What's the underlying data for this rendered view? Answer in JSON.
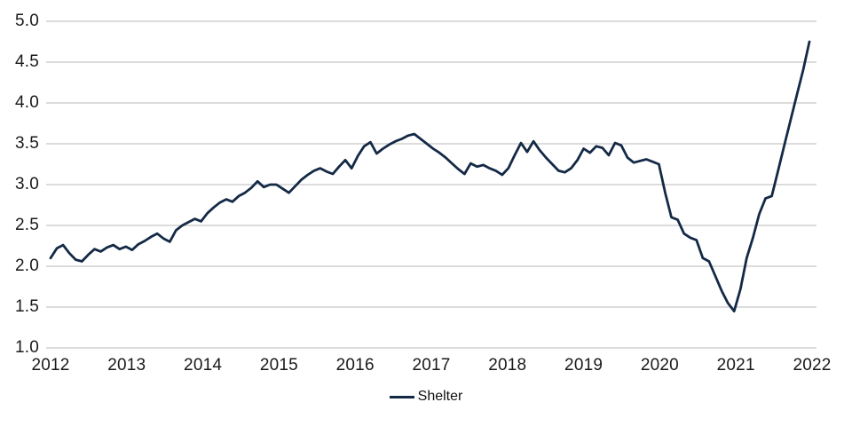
{
  "chart_data": {
    "type": "line",
    "title": "",
    "xlabel": "",
    "ylabel": "",
    "frequency": "monthly",
    "x_start": "2012-01",
    "x_end": "2022-02",
    "x_tick_labels": [
      "2012",
      "2013",
      "2014",
      "2015",
      "2016",
      "2017",
      "2018",
      "2019",
      "2020",
      "2021",
      "2022"
    ],
    "y_tick_labels": [
      "5.0",
      "4.5",
      "4.0",
      "3.5",
      "3.0",
      "2.5",
      "2.0",
      "1.5",
      "1.0"
    ],
    "y_ticks": [
      5.0,
      4.5,
      4.0,
      3.5,
      3.0,
      2.5,
      2.0,
      1.5,
      1.0
    ],
    "ylim": [
      1.0,
      5.0
    ],
    "grid": "horizontal-only",
    "legend_position": "bottom-center",
    "series": [
      {
        "name": "Shelter",
        "color": "#132946",
        "values": [
          2.1,
          2.22,
          2.26,
          2.16,
          2.08,
          2.06,
          2.14,
          2.21,
          2.18,
          2.23,
          2.26,
          2.21,
          2.24,
          2.2,
          2.27,
          2.31,
          2.36,
          2.4,
          2.34,
          2.3,
          2.44,
          2.5,
          2.54,
          2.58,
          2.55,
          2.65,
          2.72,
          2.78,
          2.82,
          2.79,
          2.86,
          2.9,
          2.96,
          3.04,
          2.97,
          3.0,
          3.0,
          2.95,
          2.9,
          2.98,
          3.06,
          3.12,
          3.17,
          3.2,
          3.16,
          3.13,
          3.22,
          3.3,
          3.2,
          3.35,
          3.47,
          3.52,
          3.38,
          3.44,
          3.49,
          3.53,
          3.56,
          3.6,
          3.62,
          3.56,
          3.5,
          3.44,
          3.39,
          3.33,
          3.26,
          3.19,
          3.13,
          3.26,
          3.22,
          3.24,
          3.2,
          3.17,
          3.12,
          3.2,
          3.36,
          3.51,
          3.4,
          3.53,
          3.42,
          3.33,
          3.25,
          3.17,
          3.15,
          3.2,
          3.3,
          3.44,
          3.39,
          3.47,
          3.45,
          3.36,
          3.51,
          3.48,
          3.33,
          3.27,
          3.29,
          3.31,
          3.28,
          3.25,
          2.9,
          2.6,
          2.57,
          2.4,
          2.35,
          2.32,
          2.1,
          2.06,
          1.88,
          1.7,
          1.55,
          1.45,
          1.72,
          2.1,
          2.35,
          2.64,
          2.83,
          2.86,
          3.17,
          3.48,
          3.79,
          4.1,
          4.4,
          4.75
        ]
      }
    ]
  },
  "legend": {
    "label": "Shelter"
  },
  "colors": {
    "background": "#ffffff",
    "gridline": "#c8c8c8",
    "text": "#1a1a1a",
    "line": "#132946"
  }
}
